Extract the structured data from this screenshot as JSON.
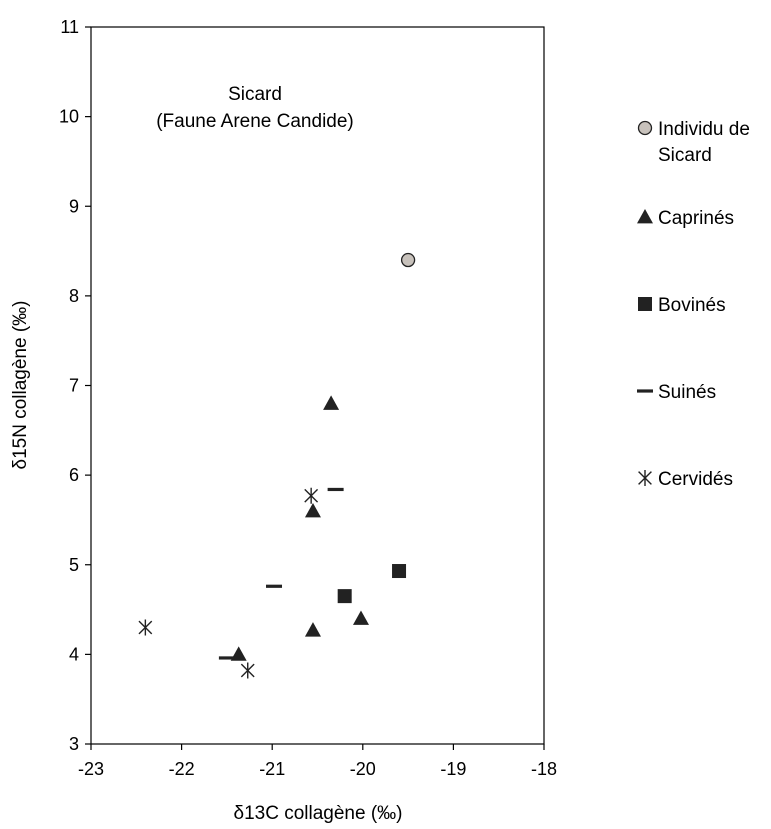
{
  "chart_data": {
    "type": "scatter",
    "title": "",
    "annotation": [
      "Sicard",
      "(Faune Arene Candide)"
    ],
    "xlabel": "δ13C collagène (‰)",
    "ylabel": "δ15N collagène (‰)",
    "xlim": [
      -23,
      -18
    ],
    "ylim": [
      3,
      11
    ],
    "xticks": [
      -23,
      -22,
      -21,
      -20,
      -19,
      -18
    ],
    "yticks": [
      3,
      4,
      5,
      6,
      7,
      8,
      9,
      10,
      11
    ],
    "grid": false,
    "legend_position": "right",
    "series": [
      {
        "name": "Individu de Sicard",
        "legend_lines": [
          "Individu de",
          "Sicard"
        ],
        "marker": "circle",
        "color": "#c8c2bc",
        "points": [
          [
            -19.5,
            8.4
          ]
        ]
      },
      {
        "name": "Caprinés",
        "legend_lines": [
          "Caprinés"
        ],
        "marker": "triangle",
        "color": "#222222",
        "points": [
          [
            -20.35,
            6.8
          ],
          [
            -20.55,
            5.6
          ],
          [
            -20.55,
            4.27
          ],
          [
            -20.02,
            4.4
          ],
          [
            -21.37,
            4.0
          ]
        ]
      },
      {
        "name": "Bovinés",
        "legend_lines": [
          "Bovinés"
        ],
        "marker": "square",
        "color": "#222222",
        "points": [
          [
            -19.6,
            4.93
          ],
          [
            -20.2,
            4.65
          ]
        ]
      },
      {
        "name": "Suinés",
        "legend_lines": [
          "Suinés"
        ],
        "marker": "dash",
        "color": "#222222",
        "points": [
          [
            -20.3,
            5.84
          ],
          [
            -20.98,
            4.76
          ],
          [
            -21.5,
            3.96
          ]
        ]
      },
      {
        "name": "Cervidés",
        "legend_lines": [
          "Cervidés"
        ],
        "marker": "asterisk",
        "color": "#222222",
        "points": [
          [
            -20.57,
            5.77
          ],
          [
            -22.4,
            4.3
          ],
          [
            -21.27,
            3.82
          ]
        ]
      }
    ]
  }
}
